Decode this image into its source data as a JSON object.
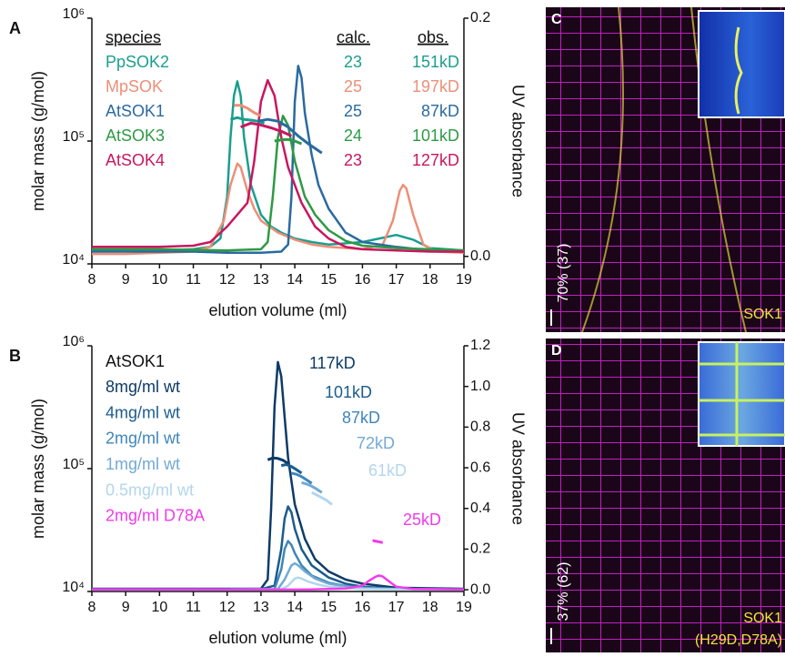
{
  "chart_data": [
    {
      "type": "line",
      "panel_label": "A",
      "x_label": "elution volume (ml)",
      "y_label": "molar mass (g/mol)",
      "y2_label": "UV absorbance",
      "log_y": true,
      "xlim": [
        8,
        19
      ],
      "xticks": [
        8,
        9,
        10,
        11,
        12,
        13,
        14,
        15,
        16,
        17,
        18,
        19
      ],
      "ylim": [
        10000,
        1000000
      ],
      "yticks": [
        {
          "value": 10000,
          "label": "10⁴"
        },
        {
          "value": 100000,
          "label": "10⁵"
        },
        {
          "value": 1000000,
          "label": "10⁶"
        }
      ],
      "y2lim": [
        -0.0063,
        0.2
      ],
      "y2ticks": [
        {
          "value": 0,
          "label": "0.0"
        },
        {
          "value": 0.2,
          "label": "0.2"
        }
      ],
      "legend_headers": [
        "species",
        "calc.",
        "obs."
      ],
      "series": [
        {
          "name": "PpSOK2",
          "color": "#1a9e8f",
          "axis": "y2",
          "calc": 23,
          "obs": "151kD",
          "x": [
            8,
            9,
            10,
            11,
            11.5,
            11.8,
            12,
            12.1,
            12.2,
            12.3,
            12.4,
            12.5,
            12.7,
            13,
            13.3,
            13.6,
            14,
            14.5,
            15,
            16,
            16.5,
            17,
            17.5,
            18,
            19
          ],
          "values": [
            0.005,
            0.005,
            0.005,
            0.006,
            0.008,
            0.015,
            0.05,
            0.1,
            0.135,
            0.147,
            0.135,
            0.1,
            0.06,
            0.035,
            0.025,
            0.02,
            0.015,
            0.012,
            0.01,
            0.012,
            0.015,
            0.018,
            0.014,
            0.007,
            0.005
          ]
        },
        {
          "name": "MpSOK",
          "color": "#ec8f77",
          "axis": "y2",
          "calc": 25,
          "obs": "197kD",
          "x": [
            8,
            9,
            10,
            11,
            11.5,
            11.9,
            12.1,
            12.3,
            12.4,
            12.6,
            12.8,
            13,
            13.5,
            14,
            14.5,
            15,
            16,
            16.6,
            16.9,
            17.1,
            17.2,
            17.3,
            17.5,
            17.8,
            18.2,
            19
          ],
          "values": [
            0.002,
            0.002,
            0.003,
            0.004,
            0.008,
            0.03,
            0.06,
            0.078,
            0.075,
            0.055,
            0.04,
            0.03,
            0.02,
            0.014,
            0.01,
            0.008,
            0.006,
            0.01,
            0.03,
            0.055,
            0.06,
            0.057,
            0.035,
            0.01,
            0.004,
            0.003
          ]
        },
        {
          "name": "AtSOK1",
          "color": "#2a6aa0",
          "axis": "y2",
          "calc": 25,
          "obs": "87kD",
          "x": [
            8,
            9,
            10,
            11,
            12,
            13,
            13.6,
            13.8,
            13.9,
            14,
            14.1,
            14.2,
            14.3,
            14.5,
            14.7,
            15,
            15.5,
            16,
            17,
            18,
            19
          ],
          "values": [
            0.004,
            0.004,
            0.004,
            0.004,
            0.003,
            0.003,
            0.004,
            0.01,
            0.05,
            0.13,
            0.16,
            0.15,
            0.12,
            0.085,
            0.06,
            0.04,
            0.02,
            0.012,
            0.008,
            0.005,
            0.004
          ]
        },
        {
          "name": "AtSOK3",
          "color": "#2e9a45",
          "axis": "y2",
          "calc": 24,
          "obs": "101kD",
          "x": [
            8,
            10,
            12,
            13,
            13.2,
            13.35,
            13.5,
            13.65,
            13.8,
            14,
            14.3,
            14.6,
            15,
            15.5,
            16,
            17,
            18,
            19
          ],
          "values": [
            0.006,
            0.006,
            0.005,
            0.006,
            0.012,
            0.05,
            0.1,
            0.118,
            0.11,
            0.08,
            0.05,
            0.035,
            0.022,
            0.013,
            0.009,
            0.007,
            0.006,
            0.005
          ]
        },
        {
          "name": "AtSOK4",
          "color": "#c8175f",
          "axis": "y2",
          "calc": 23,
          "obs": "127kD",
          "x": [
            8,
            10,
            11,
            11.5,
            12,
            12.3,
            12.6,
            12.8,
            13,
            13.2,
            13.4,
            13.6,
            13.8,
            14.2,
            14.6,
            15,
            15.5,
            16,
            17,
            18,
            19
          ],
          "values": [
            0.008,
            0.008,
            0.009,
            0.012,
            0.025,
            0.035,
            0.045,
            0.08,
            0.13,
            0.148,
            0.135,
            0.1,
            0.075,
            0.045,
            0.025,
            0.015,
            0.008,
            0.006,
            0.005,
            0.004,
            0.004
          ]
        }
      ],
      "mass_series": [
        {
          "color": "#1a9e8f",
          "x": [
            12.1,
            12.3,
            12.5,
            12.7,
            12.9,
            13.1
          ],
          "values": [
            150000,
            155000,
            150000,
            148000,
            145000,
            140000
          ]
        },
        {
          "color": "#ec8f77",
          "x": [
            12.2,
            12.4,
            12.6,
            12.8,
            13.0
          ],
          "values": [
            195000,
            195000,
            185000,
            170000,
            160000
          ]
        },
        {
          "color": "#2a6aa0",
          "x": [
            12.9,
            13.2,
            13.5,
            13.8,
            14.1,
            14.4,
            14.8
          ],
          "values": [
            145000,
            150000,
            145000,
            130000,
            110000,
            95000,
            80000
          ]
        },
        {
          "color": "#2e9a45",
          "x": [
            13.4,
            13.6,
            13.8,
            14,
            14.2
          ],
          "values": [
            100000,
            102000,
            103000,
            100000,
            95000
          ]
        },
        {
          "color": "#c8175f",
          "x": [
            12.4,
            12.7,
            13,
            13.3,
            13.6,
            13.9
          ],
          "values": [
            130000,
            140000,
            135000,
            128000,
            120000,
            110000
          ]
        }
      ]
    },
    {
      "type": "line",
      "panel_label": "B",
      "x_label": "elution volume (ml)",
      "y_label": "molar mass (g/mol)",
      "y2_label": "UV absorbance",
      "log_y": true,
      "xlim": [
        8,
        19
      ],
      "xticks": [
        8,
        9,
        10,
        11,
        12,
        13,
        14,
        15,
        16,
        17,
        18,
        19
      ],
      "ylim": [
        10000,
        1000000
      ],
      "yticks": [
        {
          "value": 10000,
          "label": "10⁴"
        },
        {
          "value": 100000,
          "label": "10⁵"
        },
        {
          "value": 1000000,
          "label": "10⁶"
        }
      ],
      "y2lim": [
        -0.0085,
        1.2
      ],
      "y2ticks": [
        {
          "value": 0,
          "label": "0.0"
        },
        {
          "value": 0.2,
          "label": "0.2"
        },
        {
          "value": 0.4,
          "label": "0.4"
        },
        {
          "value": 0.6,
          "label": "0.6"
        },
        {
          "value": 0.8,
          "label": "0.8"
        },
        {
          "value": 1.0,
          "label": "1.0"
        },
        {
          "value": 1.2,
          "label": "1.2"
        }
      ],
      "legend_title": "AtSOK1",
      "series": [
        {
          "name": "8mg/ml wt",
          "color": "#0d3b66",
          "axis": "y2",
          "label": "117kD",
          "x": [
            8,
            10,
            12,
            13,
            13.2,
            13.3,
            13.4,
            13.5,
            13.6,
            13.7,
            13.8,
            14,
            14.3,
            14.6,
            15,
            15.5,
            16,
            17,
            19
          ],
          "values": [
            0.005,
            0.005,
            0.005,
            0.005,
            0.05,
            0.4,
            0.9,
            1.12,
            1.05,
            0.85,
            0.65,
            0.42,
            0.25,
            0.15,
            0.09,
            0.05,
            0.03,
            0.01,
            0.005
          ]
        },
        {
          "name": "4mg/ml wt",
          "color": "#1b5c8e",
          "axis": "y2",
          "label": "101kD",
          "x": [
            8,
            12,
            13,
            13.4,
            13.6,
            13.7,
            13.8,
            13.9,
            14,
            14.2,
            14.5,
            15,
            15.5,
            16,
            17,
            19
          ],
          "values": [
            0.003,
            0.003,
            0.003,
            0.02,
            0.2,
            0.35,
            0.41,
            0.38,
            0.3,
            0.2,
            0.12,
            0.06,
            0.03,
            0.015,
            0.005,
            0.003
          ]
        },
        {
          "name": "2mg/ml wt",
          "color": "#3f86ba",
          "axis": "y2",
          "label": "87kD",
          "x": [
            8,
            12,
            13.4,
            13.6,
            13.7,
            13.8,
            13.9,
            14,
            14.2,
            14.5,
            15,
            15.5,
            16,
            17,
            19
          ],
          "values": [
            0.002,
            0.002,
            0.003,
            0.1,
            0.2,
            0.24,
            0.22,
            0.18,
            0.12,
            0.07,
            0.035,
            0.018,
            0.01,
            0.004,
            0.002
          ]
        },
        {
          "name": "1mg/ml wt",
          "color": "#72aad3",
          "axis": "y2",
          "label": "72kD",
          "x": [
            8,
            12,
            13.5,
            13.7,
            13.9,
            14,
            14.1,
            14.3,
            14.6,
            15,
            15.5,
            16,
            17,
            19
          ],
          "values": [
            0.002,
            0.002,
            0.003,
            0.05,
            0.12,
            0.13,
            0.12,
            0.09,
            0.055,
            0.03,
            0.015,
            0.008,
            0.003,
            0.002
          ]
        },
        {
          "name": "0.5mg/ml wt",
          "color": "#b3d6ec",
          "axis": "y2",
          "label": "61kD",
          "x": [
            8,
            12,
            13.6,
            13.8,
            14,
            14.1,
            14.2,
            14.4,
            14.7,
            15,
            15.5,
            16,
            17,
            19
          ],
          "values": [
            0.001,
            0.001,
            0.002,
            0.02,
            0.055,
            0.06,
            0.055,
            0.04,
            0.025,
            0.015,
            0.008,
            0.004,
            0.002,
            0.001
          ]
        },
        {
          "name": "2mg/ml D78A",
          "color": "#f03ceb",
          "axis": "y2",
          "label": "25kD",
          "x": [
            8,
            14,
            14.5,
            15,
            15.5,
            16,
            16.2,
            16.4,
            16.5,
            16.6,
            16.8,
            17,
            17.5,
            19
          ],
          "values": [
            0.001,
            0.001,
            0.002,
            0.004,
            0.006,
            0.02,
            0.045,
            0.065,
            0.07,
            0.065,
            0.04,
            0.015,
            0.004,
            0.001
          ]
        }
      ],
      "mass_series": [
        {
          "color": "#0d3b66",
          "x": [
            13.2,
            13.35,
            13.5,
            13.65,
            13.8
          ],
          "values": [
            118000,
            122000,
            121000,
            117000,
            110000
          ]
        },
        {
          "color": "#1b5c8e",
          "x": [
            13.6,
            13.75,
            13.9,
            14.05,
            14.2
          ],
          "values": [
            106000,
            108000,
            104000,
            98000,
            92000
          ]
        },
        {
          "color": "#3f86ba",
          "x": [
            13.9,
            14.05,
            14.2,
            14.35,
            14.5
          ],
          "values": [
            92000,
            90000,
            86000,
            81000,
            76000
          ]
        },
        {
          "color": "#72aad3",
          "x": [
            14.2,
            14.35,
            14.5,
            14.65,
            14.8
          ],
          "values": [
            77000,
            75000,
            72000,
            68000,
            64000
          ]
        },
        {
          "color": "#b3d6ec",
          "x": [
            14.5,
            14.65,
            14.8,
            14.95,
            15.1
          ],
          "values": [
            64000,
            61000,
            58000,
            55000,
            51000
          ]
        },
        {
          "color": "#f03ceb",
          "x": [
            16.3,
            16.45,
            16.6
          ],
          "values": [
            26000,
            25500,
            25000
          ]
        }
      ]
    }
  ],
  "images": [
    {
      "panel_label": "C",
      "annotation": "70% (37)",
      "marker": "SOK1"
    },
    {
      "panel_label": "D",
      "annotation": "37% (62)",
      "marker": "SOK1",
      "mutation": "(H29D,D78A)"
    }
  ]
}
